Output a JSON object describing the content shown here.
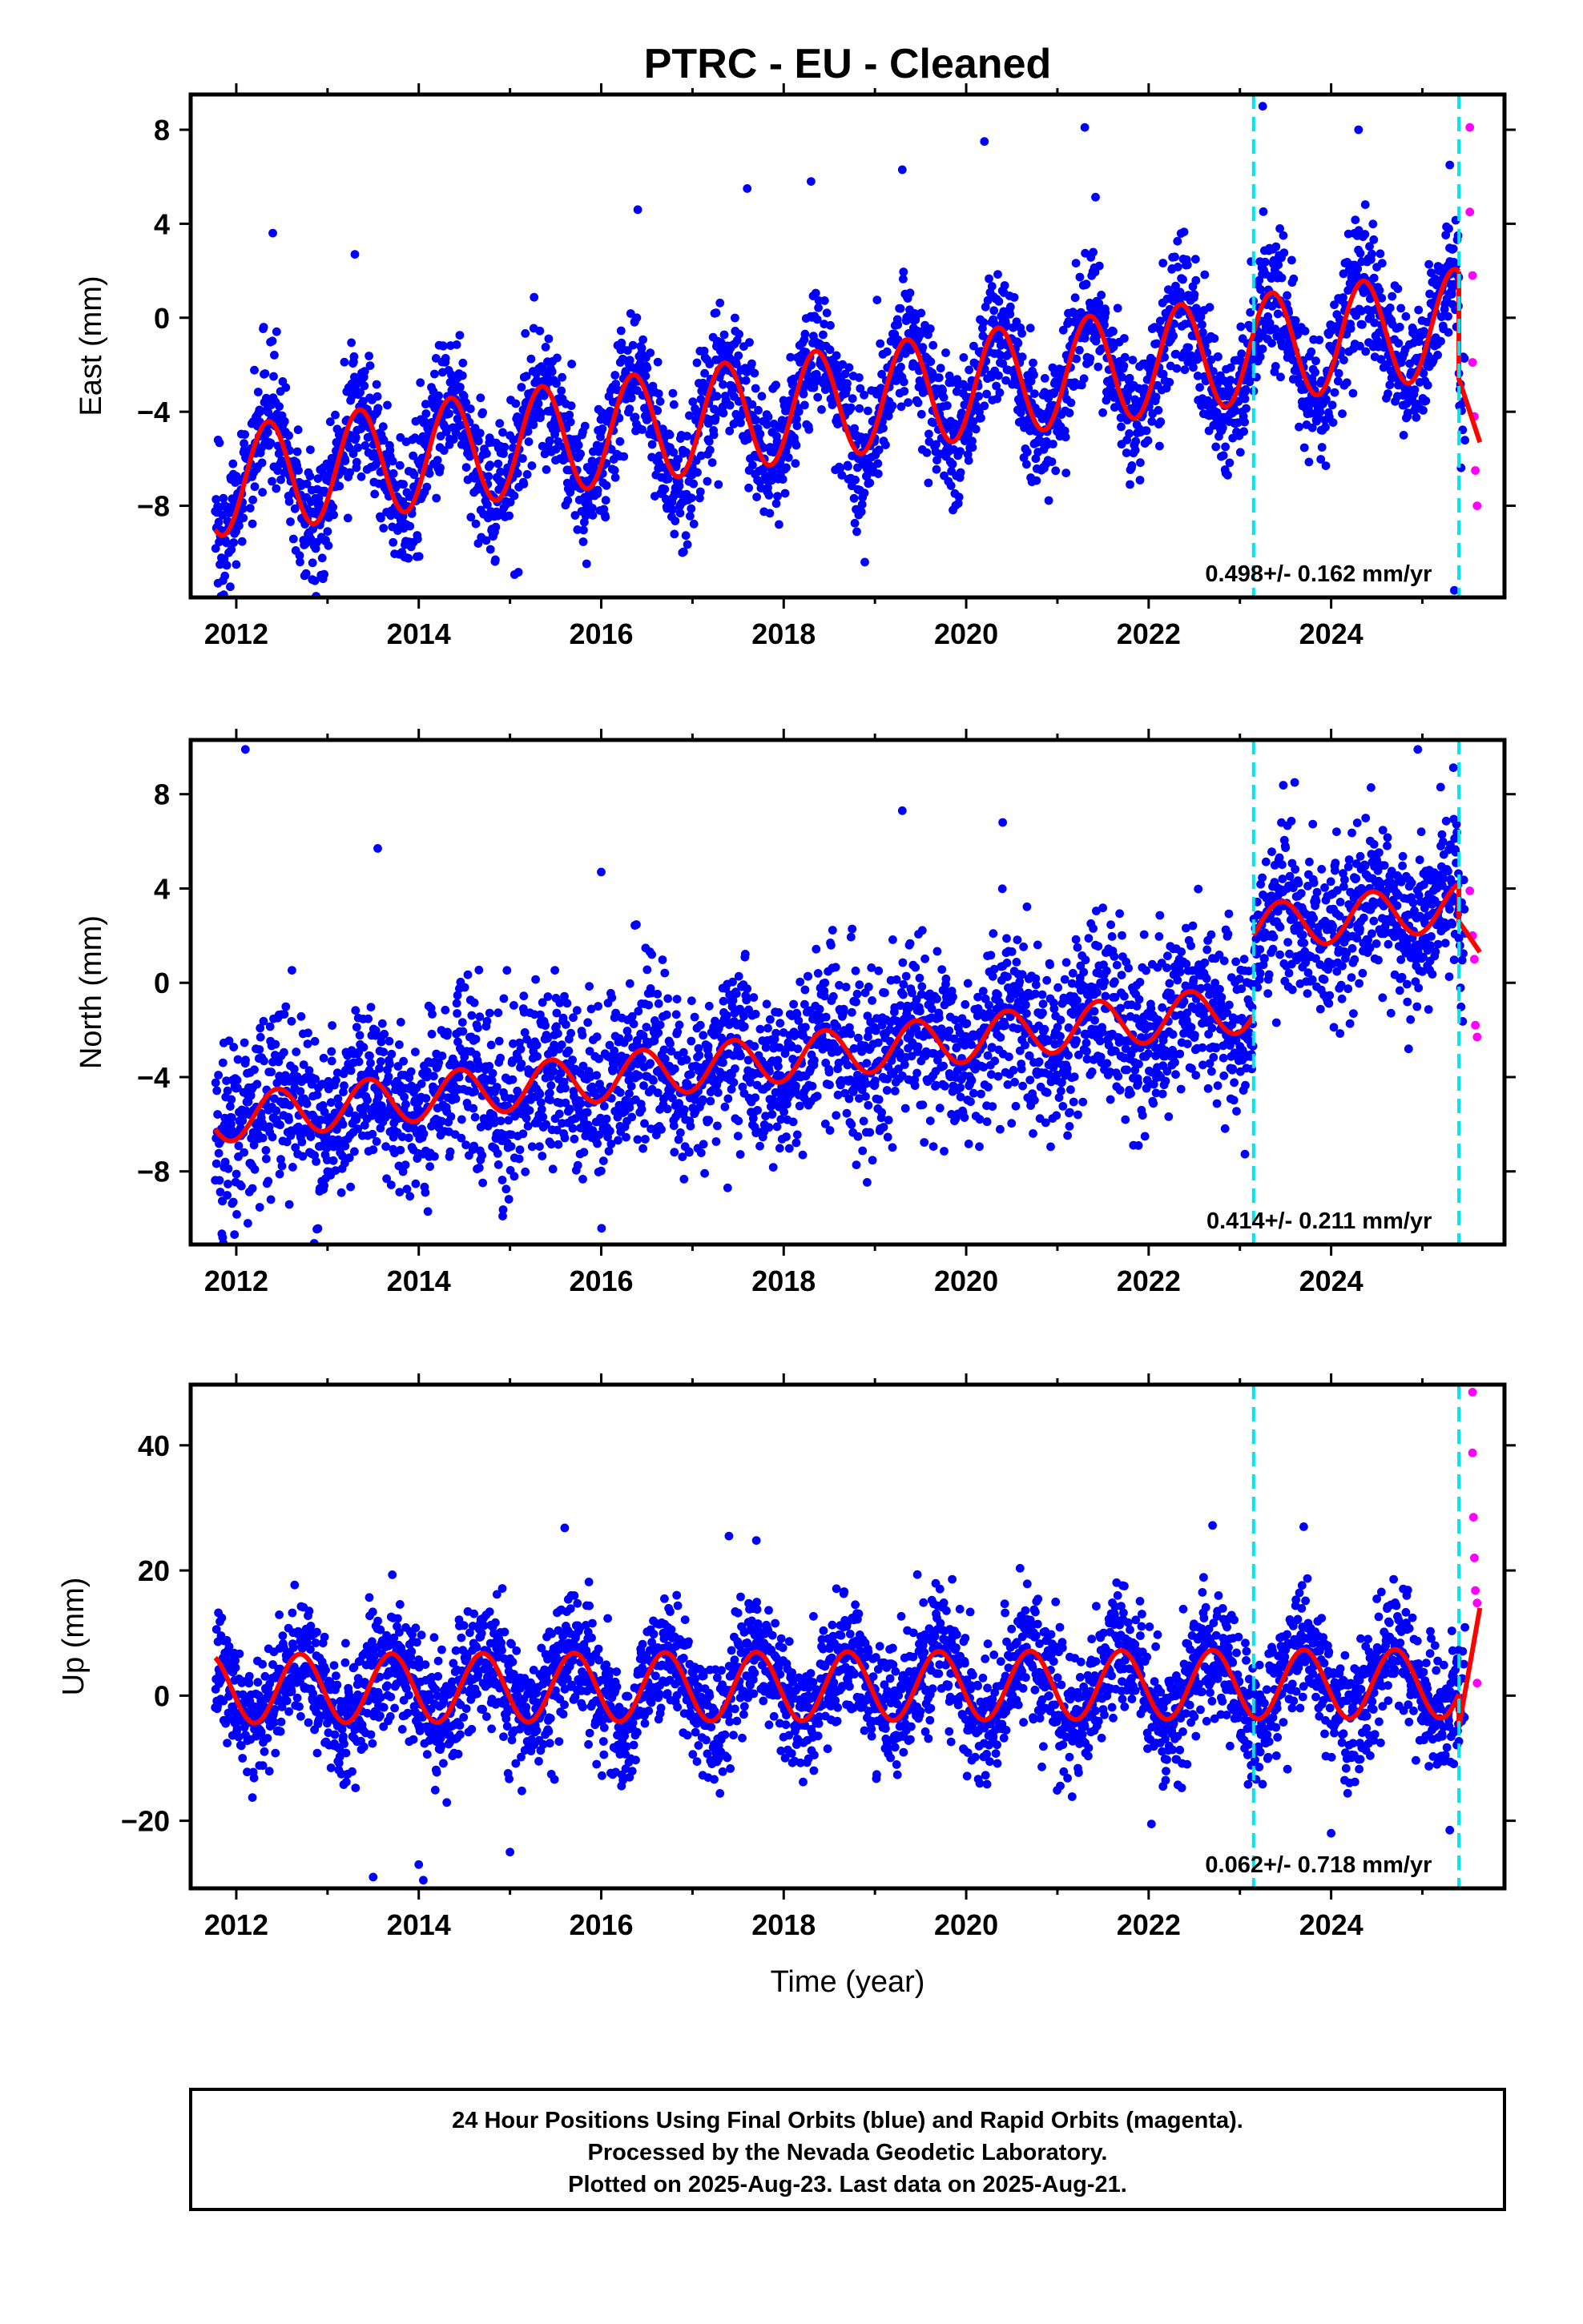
{
  "title": "PTRC  - EU - Cleaned",
  "xlabel": "Time (year)",
  "colors": {
    "final_orbits": "#0000ff",
    "rapid_orbits": "#ff00ff",
    "model": "#ff0000",
    "breaks": "#00e5ee"
  },
  "footer": {
    "line1": "24 Hour Positions Using Final Orbits (blue) and Rapid Orbits (magenta).",
    "line2": "Processed by the Nevada Geodetic Laboratory.",
    "line3": "Plotted on 2025-Aug-23. Last data on 2025-Aug-21."
  },
  "chart_data": [
    {
      "type": "scatter",
      "ylabel": "East (mm)",
      "xlim": [
        2011.5,
        2025.9
      ],
      "ylim": [
        -11.9,
        9.5
      ],
      "xticks": [
        2012,
        2014,
        2016,
        2018,
        2020,
        2022,
        2024
      ],
      "yticks": [
        -8,
        -4,
        0,
        4,
        8
      ],
      "ytick_labels": [
        "−8",
        "−4",
        "0",
        "4",
        "8"
      ],
      "rate_text": "0.498+/- 0.162 mm/yr",
      "breaks": [
        2023.15,
        2025.4
      ],
      "data_start": 2011.77,
      "data_end": 2025.63,
      "rapid_start": 2025.47,
      "series": [
        {
          "role": "final",
          "model": {
            "offset": -3.65,
            "slope": 0.498,
            "annual": 2.3,
            "phase": 2024.35
          }
        },
        {
          "role": "fit_segment_last",
          "values": [
            [
              2025.4,
              -2.6
            ],
            [
              2025.63,
              -5.3
            ]
          ]
        }
      ],
      "samples": {
        "final": [
          [
            2011.8,
            -5.2
          ],
          [
            2011.85,
            -8.4
          ],
          [
            2012.0,
            -10.5
          ],
          [
            2012.3,
            -0.4
          ],
          [
            2012.4,
            3.6
          ],
          [
            2013.3,
            2.7
          ],
          [
            2015.85,
            -8.2
          ],
          [
            2016.4,
            4.6
          ],
          [
            2017.6,
            5.5
          ],
          [
            2018.3,
            5.8
          ],
          [
            2019.3,
            6.3
          ],
          [
            2020.2,
            7.5
          ],
          [
            2021.3,
            8.1
          ],
          [
            2023.25,
            9.0
          ],
          [
            2024.3,
            8.0
          ],
          [
            2025.3,
            6.5
          ],
          [
            2025.35,
            -11.6
          ]
        ],
        "rapid": [
          [
            2025.52,
            8.1
          ],
          [
            2025.52,
            4.5
          ],
          [
            2025.55,
            1.8
          ],
          [
            2025.55,
            -1.9
          ],
          [
            2025.57,
            -4.2
          ],
          [
            2025.58,
            -6.5
          ],
          [
            2025.6,
            -8.0
          ]
        ]
      }
    },
    {
      "type": "scatter",
      "ylabel": "North (mm)",
      "xlim": [
        2011.5,
        2025.9
      ],
      "ylim": [
        -11.1,
        10.3
      ],
      "xticks": [
        2012,
        2014,
        2016,
        2018,
        2020,
        2022,
        2024
      ],
      "yticks": [
        -8,
        -4,
        0,
        4,
        8
      ],
      "ytick_labels": [
        "−8",
        "−4",
        "0",
        "4",
        "8"
      ],
      "rate_text": "0.414+/- 0.211 mm/yr",
      "breaks": [
        2023.15,
        2025.4
      ],
      "data_start": 2011.77,
      "data_end": 2025.63,
      "rapid_start": 2025.47,
      "series": [
        {
          "role": "final",
          "model": {
            "offset": -3.0,
            "slope": 0.414,
            "annual": 1.0,
            "phase": 2024.45
          }
        },
        {
          "role": "fit_segment_last",
          "values": [
            [
              2025.4,
              2.6
            ],
            [
              2025.63,
              1.3
            ]
          ]
        }
      ],
      "offsets_after_break": [
        0,
        3.4,
        -2.6
      ],
      "samples": {
        "final": [
          [
            2011.85,
            -10.8
          ],
          [
            2012.1,
            9.9
          ],
          [
            2013.55,
            5.7
          ],
          [
            2014.1,
            -9.7
          ],
          [
            2016.0,
            4.7
          ],
          [
            2017.5,
            -6.5
          ],
          [
            2019.3,
            7.3
          ],
          [
            2020.4,
            6.8
          ],
          [
            2023.6,
            8.5
          ],
          [
            2024.95,
            9.9
          ],
          [
            2025.2,
            8.3
          ]
        ],
        "rapid": [
          [
            2025.52,
            3.9
          ],
          [
            2025.55,
            2.0
          ],
          [
            2025.57,
            1.0
          ],
          [
            2025.58,
            -1.8
          ],
          [
            2025.6,
            -2.3
          ]
        ]
      }
    },
    {
      "type": "scatter",
      "ylabel": "Up (mm)",
      "xlim": [
        2011.5,
        2025.9
      ],
      "ylim": [
        -30.8,
        49.7
      ],
      "xticks": [
        2012,
        2014,
        2016,
        2018,
        2020,
        2022,
        2024
      ],
      "yticks": [
        -20,
        0,
        20,
        40
      ],
      "ytick_labels": [
        "−20",
        "0",
        "20",
        "40"
      ],
      "rate_text": "0.062+/- 0.718 mm/yr",
      "breaks": [
        2023.15,
        2025.4
      ],
      "data_start": 2011.77,
      "data_end": 2025.63,
      "rapid_start": 2025.47,
      "series": [
        {
          "role": "final",
          "model": {
            "offset": 1.5,
            "slope": 0.062,
            "annual": 5.5,
            "phase": 2024.7
          }
        },
        {
          "role": "fit_segment_last",
          "values": [
            [
              2025.4,
              -5.0
            ],
            [
              2025.63,
              14.0
            ]
          ]
        }
      ],
      "samples": {
        "final": [
          [
            2013.5,
            -29.0
          ],
          [
            2014.0,
            -27.0
          ],
          [
            2014.05,
            -29.5
          ],
          [
            2015.0,
            -25.0
          ],
          [
            2015.6,
            26.8
          ],
          [
            2017.4,
            25.5
          ],
          [
            2017.7,
            24.8
          ],
          [
            2022.7,
            27.2
          ],
          [
            2023.7,
            27.0
          ],
          [
            2024.0,
            -22.0
          ],
          [
            2025.3,
            -21.5
          ]
        ],
        "rapid": [
          [
            2025.55,
            48.5
          ],
          [
            2025.55,
            38.8
          ],
          [
            2025.56,
            28.5
          ],
          [
            2025.57,
            22.0
          ],
          [
            2025.58,
            16.8
          ],
          [
            2025.6,
            14.8
          ],
          [
            2025.6,
            2.0
          ]
        ]
      }
    }
  ]
}
